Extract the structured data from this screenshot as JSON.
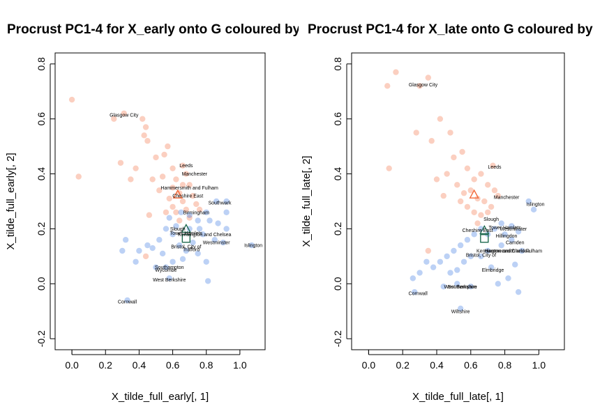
{
  "chart_data": [
    {
      "type": "scatter",
      "title": "Procrust PC1-4 for X_early onto G coloured by",
      "xlabel": "X_tilde_full_early[, 1]",
      "ylabel": "X_tilde_full_early[, 2]",
      "xlim": [
        -0.1,
        1.15
      ],
      "ylim": [
        -0.24,
        0.84
      ],
      "xticks": [
        "0.0",
        "0.2",
        "0.4",
        "0.6",
        "0.8",
        "1.0"
      ],
      "yticks": [
        "-0.2",
        "0.0",
        "0.2",
        "0.4",
        "0.6",
        "0.8"
      ],
      "grid": false,
      "colors": {
        "red": "#f26a3a",
        "blue": "#2f6fe0",
        "marker": "#1f6a50"
      },
      "points": [
        {
          "x": 0.0,
          "y": 0.67,
          "c": "red"
        },
        {
          "x": 0.04,
          "y": 0.39,
          "c": "red"
        },
        {
          "x": 0.25,
          "y": 0.6,
          "c": "red"
        },
        {
          "x": 0.31,
          "y": 0.62,
          "c": "red"
        },
        {
          "x": 0.42,
          "y": 0.6,
          "c": "red"
        },
        {
          "x": 0.44,
          "y": 0.57,
          "c": "red"
        },
        {
          "x": 0.43,
          "y": 0.54,
          "c": "red"
        },
        {
          "x": 0.45,
          "y": 0.52,
          "c": "red"
        },
        {
          "x": 0.35,
          "y": 0.38,
          "c": "red"
        },
        {
          "x": 0.29,
          "y": 0.44,
          "c": "red"
        },
        {
          "x": 0.38,
          "y": 0.42,
          "c": "red"
        },
        {
          "x": 0.5,
          "y": 0.46,
          "c": "red"
        },
        {
          "x": 0.55,
          "y": 0.47,
          "c": "red"
        },
        {
          "x": 0.57,
          "y": 0.5,
          "c": "red"
        },
        {
          "x": 0.6,
          "y": 0.42,
          "c": "red"
        },
        {
          "x": 0.62,
          "y": 0.38,
          "c": "red"
        },
        {
          "x": 0.66,
          "y": 0.43,
          "c": "red"
        },
        {
          "x": 0.68,
          "y": 0.4,
          "c": "red"
        },
        {
          "x": 0.7,
          "y": 0.36,
          "c": "red"
        },
        {
          "x": 0.64,
          "y": 0.33,
          "c": "red"
        },
        {
          "x": 0.58,
          "y": 0.31,
          "c": "red"
        },
        {
          "x": 0.6,
          "y": 0.28,
          "c": "red"
        },
        {
          "x": 0.66,
          "y": 0.3,
          "c": "red"
        },
        {
          "x": 0.72,
          "y": 0.32,
          "c": "red"
        },
        {
          "x": 0.62,
          "y": 0.26,
          "c": "red"
        },
        {
          "x": 0.68,
          "y": 0.27,
          "c": "red"
        },
        {
          "x": 0.74,
          "y": 0.29,
          "c": "red"
        },
        {
          "x": 0.56,
          "y": 0.26,
          "c": "red"
        },
        {
          "x": 0.64,
          "y": 0.23,
          "c": "red"
        },
        {
          "x": 0.7,
          "y": 0.24,
          "c": "red"
        },
        {
          "x": 0.48,
          "y": 0.38,
          "c": "red"
        },
        {
          "x": 0.52,
          "y": 0.34,
          "c": "red"
        },
        {
          "x": 0.54,
          "y": 0.39,
          "c": "red"
        },
        {
          "x": 0.46,
          "y": 0.25,
          "c": "red"
        },
        {
          "x": 0.76,
          "y": 0.27,
          "c": "red"
        },
        {
          "x": 0.66,
          "y": 0.36,
          "c": "red"
        },
        {
          "x": 0.6,
          "y": 0.35,
          "c": "red"
        },
        {
          "x": 0.44,
          "y": 0.1,
          "c": "red"
        },
        {
          "x": 0.65,
          "y": 0.26,
          "c": "blue"
        },
        {
          "x": 0.7,
          "y": 0.25,
          "c": "blue"
        },
        {
          "x": 0.75,
          "y": 0.23,
          "c": "blue"
        },
        {
          "x": 0.8,
          "y": 0.26,
          "c": "blue"
        },
        {
          "x": 0.86,
          "y": 0.3,
          "c": "blue"
        },
        {
          "x": 0.92,
          "y": 0.3,
          "c": "blue"
        },
        {
          "x": 0.92,
          "y": 0.26,
          "c": "blue"
        },
        {
          "x": 0.87,
          "y": 0.22,
          "c": "blue"
        },
        {
          "x": 0.92,
          "y": 0.2,
          "c": "blue"
        },
        {
          "x": 0.85,
          "y": 0.16,
          "c": "blue"
        },
        {
          "x": 0.9,
          "y": 0.15,
          "c": "blue"
        },
        {
          "x": 1.07,
          "y": 0.14,
          "c": "blue"
        },
        {
          "x": 0.78,
          "y": 0.18,
          "c": "blue"
        },
        {
          "x": 0.72,
          "y": 0.15,
          "c": "blue"
        },
        {
          "x": 0.68,
          "y": 0.12,
          "c": "blue"
        },
        {
          "x": 0.75,
          "y": 0.11,
          "c": "blue"
        },
        {
          "x": 0.8,
          "y": 0.08,
          "c": "blue"
        },
        {
          "x": 0.64,
          "y": 0.14,
          "c": "blue"
        },
        {
          "x": 0.6,
          "y": 0.18,
          "c": "blue"
        },
        {
          "x": 0.56,
          "y": 0.2,
          "c": "blue"
        },
        {
          "x": 0.52,
          "y": 0.16,
          "c": "blue"
        },
        {
          "x": 0.48,
          "y": 0.13,
          "c": "blue"
        },
        {
          "x": 0.45,
          "y": 0.14,
          "c": "blue"
        },
        {
          "x": 0.4,
          "y": 0.12,
          "c": "blue"
        },
        {
          "x": 0.32,
          "y": 0.16,
          "c": "blue"
        },
        {
          "x": 0.3,
          "y": 0.12,
          "c": "blue"
        },
        {
          "x": 0.38,
          "y": 0.08,
          "c": "blue"
        },
        {
          "x": 0.5,
          "y": 0.06,
          "c": "blue"
        },
        {
          "x": 0.56,
          "y": 0.06,
          "c": "blue"
        },
        {
          "x": 0.6,
          "y": 0.08,
          "c": "blue"
        },
        {
          "x": 0.66,
          "y": 0.09,
          "c": "blue"
        },
        {
          "x": 0.58,
          "y": 0.02,
          "c": "blue"
        },
        {
          "x": 0.81,
          "y": 0.01,
          "c": "blue"
        },
        {
          "x": 0.33,
          "y": -0.06,
          "c": "blue"
        },
        {
          "x": 0.62,
          "y": 0.21,
          "c": "blue"
        },
        {
          "x": 0.7,
          "y": 0.2,
          "c": "blue"
        },
        {
          "x": 0.76,
          "y": 0.2,
          "c": "blue"
        },
        {
          "x": 0.82,
          "y": 0.23,
          "c": "blue"
        },
        {
          "x": 0.58,
          "y": 0.24,
          "c": "blue"
        },
        {
          "x": 0.54,
          "y": 0.11,
          "c": "blue"
        }
      ],
      "labels": [
        {
          "text": "Glasgow City",
          "x": 0.31,
          "y": 0.615
        },
        {
          "text": "Leeds",
          "x": 0.68,
          "y": 0.43
        },
        {
          "text": "Manchester",
          "x": 0.73,
          "y": 0.4
        },
        {
          "text": "Hammersmith and Fulham",
          "x": 0.7,
          "y": 0.35
        },
        {
          "text": "Cheshire East",
          "x": 0.69,
          "y": 0.32
        },
        {
          "text": "Southwark",
          "x": 0.88,
          "y": 0.295
        },
        {
          "text": "Birmingham",
          "x": 0.74,
          "y": 0.26
        },
        {
          "text": "Slough",
          "x": 0.63,
          "y": 0.2
        },
        {
          "text": "Tower Hamlets",
          "x": 0.68,
          "y": 0.185
        },
        {
          "text": "Kensington and Chelsea",
          "x": 0.79,
          "y": 0.18
        },
        {
          "text": "Westminster",
          "x": 0.86,
          "y": 0.15
        },
        {
          "text": "Islington",
          "x": 1.08,
          "y": 0.14
        },
        {
          "text": "Bristol, City of",
          "x": 0.68,
          "y": 0.135
        },
        {
          "text": "Trafford",
          "x": 0.71,
          "y": 0.125
        },
        {
          "text": "Southampton",
          "x": 0.58,
          "y": 0.06
        },
        {
          "text": "Wycombe",
          "x": 0.56,
          "y": 0.05
        },
        {
          "text": "West Berkshire",
          "x": 0.58,
          "y": 0.015
        },
        {
          "text": "Cornwall",
          "x": 0.33,
          "y": -0.065
        }
      ],
      "markers": [
        {
          "shape": "triangle",
          "x": 0.63,
          "y": 0.325,
          "c": "red"
        },
        {
          "shape": "triangle",
          "x": 0.68,
          "y": 0.2,
          "c": "marker"
        },
        {
          "shape": "square",
          "x": 0.68,
          "y": 0.165,
          "c": "marker"
        }
      ]
    },
    {
      "type": "scatter",
      "title": "Procrust PC1-4 for X_late onto G coloured by",
      "xlabel": "X_tilde_full_late[, 1]",
      "ylabel": "X_tilde_full_late[, 2]",
      "xlim": [
        -0.1,
        1.15
      ],
      "ylim": [
        -0.24,
        0.84
      ],
      "xticks": [
        "0.0",
        "0.2",
        "0.4",
        "0.6",
        "0.8",
        "1.0"
      ],
      "yticks": [
        "-0.2",
        "0.0",
        "0.2",
        "0.4",
        "0.6",
        "0.8"
      ],
      "grid": false,
      "colors": {
        "red": "#f26a3a",
        "blue": "#2f6fe0",
        "marker": "#1f6a50"
      },
      "points": [
        {
          "x": 0.16,
          "y": 0.77,
          "c": "red"
        },
        {
          "x": 0.11,
          "y": 0.72,
          "c": "red"
        },
        {
          "x": 0.35,
          "y": 0.75,
          "c": "red"
        },
        {
          "x": 0.3,
          "y": 0.72,
          "c": "red"
        },
        {
          "x": 0.12,
          "y": 0.42,
          "c": "red"
        },
        {
          "x": 0.28,
          "y": 0.55,
          "c": "red"
        },
        {
          "x": 0.37,
          "y": 0.52,
          "c": "red"
        },
        {
          "x": 0.42,
          "y": 0.6,
          "c": "red"
        },
        {
          "x": 0.48,
          "y": 0.55,
          "c": "red"
        },
        {
          "x": 0.5,
          "y": 0.46,
          "c": "red"
        },
        {
          "x": 0.55,
          "y": 0.48,
          "c": "red"
        },
        {
          "x": 0.58,
          "y": 0.42,
          "c": "red"
        },
        {
          "x": 0.62,
          "y": 0.38,
          "c": "red"
        },
        {
          "x": 0.66,
          "y": 0.4,
          "c": "red"
        },
        {
          "x": 0.7,
          "y": 0.36,
          "c": "red"
        },
        {
          "x": 0.73,
          "y": 0.43,
          "c": "red"
        },
        {
          "x": 0.6,
          "y": 0.34,
          "c": "red"
        },
        {
          "x": 0.64,
          "y": 0.31,
          "c": "red"
        },
        {
          "x": 0.68,
          "y": 0.3,
          "c": "red"
        },
        {
          "x": 0.72,
          "y": 0.28,
          "c": "red"
        },
        {
          "x": 0.58,
          "y": 0.28,
          "c": "red"
        },
        {
          "x": 0.62,
          "y": 0.26,
          "c": "red"
        },
        {
          "x": 0.66,
          "y": 0.25,
          "c": "red"
        },
        {
          "x": 0.7,
          "y": 0.26,
          "c": "red"
        },
        {
          "x": 0.64,
          "y": 0.22,
          "c": "red"
        },
        {
          "x": 0.52,
          "y": 0.36,
          "c": "red"
        },
        {
          "x": 0.46,
          "y": 0.4,
          "c": "red"
        },
        {
          "x": 0.44,
          "y": 0.32,
          "c": "red"
        },
        {
          "x": 0.56,
          "y": 0.33,
          "c": "red"
        },
        {
          "x": 0.76,
          "y": 0.32,
          "c": "red"
        },
        {
          "x": 0.35,
          "y": 0.12,
          "c": "red"
        },
        {
          "x": 0.4,
          "y": 0.38,
          "c": "red"
        },
        {
          "x": 0.54,
          "y": 0.3,
          "c": "red"
        },
        {
          "x": 0.74,
          "y": 0.34,
          "c": "red"
        },
        {
          "x": 0.94,
          "y": 0.3,
          "c": "blue"
        },
        {
          "x": 0.97,
          "y": 0.27,
          "c": "blue"
        },
        {
          "x": 0.78,
          "y": 0.22,
          "c": "blue"
        },
        {
          "x": 0.84,
          "y": 0.21,
          "c": "blue"
        },
        {
          "x": 0.88,
          "y": 0.19,
          "c": "blue"
        },
        {
          "x": 0.8,
          "y": 0.18,
          "c": "blue"
        },
        {
          "x": 0.74,
          "y": 0.2,
          "c": "blue"
        },
        {
          "x": 0.7,
          "y": 0.18,
          "c": "blue"
        },
        {
          "x": 0.66,
          "y": 0.2,
          "c": "blue"
        },
        {
          "x": 0.62,
          "y": 0.18,
          "c": "blue"
        },
        {
          "x": 0.58,
          "y": 0.16,
          "c": "blue"
        },
        {
          "x": 0.54,
          "y": 0.14,
          "c": "blue"
        },
        {
          "x": 0.5,
          "y": 0.12,
          "c": "blue"
        },
        {
          "x": 0.46,
          "y": 0.1,
          "c": "blue"
        },
        {
          "x": 0.42,
          "y": 0.08,
          "c": "blue"
        },
        {
          "x": 0.38,
          "y": 0.06,
          "c": "blue"
        },
        {
          "x": 0.34,
          "y": 0.08,
          "c": "blue"
        },
        {
          "x": 0.3,
          "y": 0.04,
          "c": "blue"
        },
        {
          "x": 0.26,
          "y": 0.02,
          "c": "blue"
        },
        {
          "x": 0.27,
          "y": -0.03,
          "c": "blue"
        },
        {
          "x": 0.44,
          "y": -0.01,
          "c": "blue"
        },
        {
          "x": 0.52,
          "y": 0.0,
          "c": "blue"
        },
        {
          "x": 0.6,
          "y": -0.01,
          "c": "blue"
        },
        {
          "x": 0.54,
          "y": -0.09,
          "c": "blue"
        },
        {
          "x": 0.72,
          "y": 0.06,
          "c": "blue"
        },
        {
          "x": 0.76,
          "y": 0.0,
          "c": "blue"
        },
        {
          "x": 0.82,
          "y": 0.02,
          "c": "blue"
        },
        {
          "x": 0.86,
          "y": 0.07,
          "c": "blue"
        },
        {
          "x": 0.88,
          "y": -0.03,
          "c": "blue"
        },
        {
          "x": 0.9,
          "y": 0.12,
          "c": "blue"
        },
        {
          "x": 0.7,
          "y": 0.12,
          "c": "blue"
        },
        {
          "x": 0.66,
          "y": 0.1,
          "c": "blue"
        },
        {
          "x": 0.6,
          "y": 0.1,
          "c": "blue"
        },
        {
          "x": 0.56,
          "y": 0.08,
          "c": "blue"
        },
        {
          "x": 0.52,
          "y": 0.05,
          "c": "blue"
        },
        {
          "x": 0.48,
          "y": 0.04,
          "c": "blue"
        },
        {
          "x": 0.78,
          "y": 0.14,
          "c": "blue"
        },
        {
          "x": 0.84,
          "y": 0.16,
          "c": "blue"
        }
      ],
      "labels": [
        {
          "text": "Glasgow City",
          "x": 0.32,
          "y": 0.725
        },
        {
          "text": "Leeds",
          "x": 0.74,
          "y": 0.425
        },
        {
          "text": "Manchester",
          "x": 0.81,
          "y": 0.315
        },
        {
          "text": "Islington",
          "x": 0.98,
          "y": 0.29
        },
        {
          "text": "Slough",
          "x": 0.72,
          "y": 0.235
        },
        {
          "text": "Tower Hamlets",
          "x": 0.8,
          "y": 0.205
        },
        {
          "text": "Westminster",
          "x": 0.85,
          "y": 0.2
        },
        {
          "text": "Cheshire East",
          "x": 0.64,
          "y": 0.195
        },
        {
          "text": "Hillingdon",
          "x": 0.81,
          "y": 0.175
        },
        {
          "text": "Camden",
          "x": 0.86,
          "y": 0.15
        },
        {
          "text": "Kensington and Chelsea",
          "x": 0.79,
          "y": 0.12
        },
        {
          "text": "Hammersmith and Fulham",
          "x": 0.85,
          "y": 0.12
        },
        {
          "text": "Bristol, City of",
          "x": 0.66,
          "y": 0.105
        },
        {
          "text": "Elmbridge",
          "x": 0.73,
          "y": 0.05
        },
        {
          "text": "West Berkshire",
          "x": 0.54,
          "y": -0.01
        },
        {
          "text": "Southampton",
          "x": 0.55,
          "y": -0.01
        },
        {
          "text": "Cornwall",
          "x": 0.29,
          "y": -0.035
        },
        {
          "text": "Wiltshire",
          "x": 0.54,
          "y": -0.1
        }
      ],
      "markers": [
        {
          "shape": "triangle",
          "x": 0.62,
          "y": 0.325,
          "c": "red"
        },
        {
          "shape": "triangle",
          "x": 0.68,
          "y": 0.195,
          "c": "marker"
        },
        {
          "shape": "square",
          "x": 0.68,
          "y": 0.165,
          "c": "marker"
        }
      ]
    }
  ]
}
